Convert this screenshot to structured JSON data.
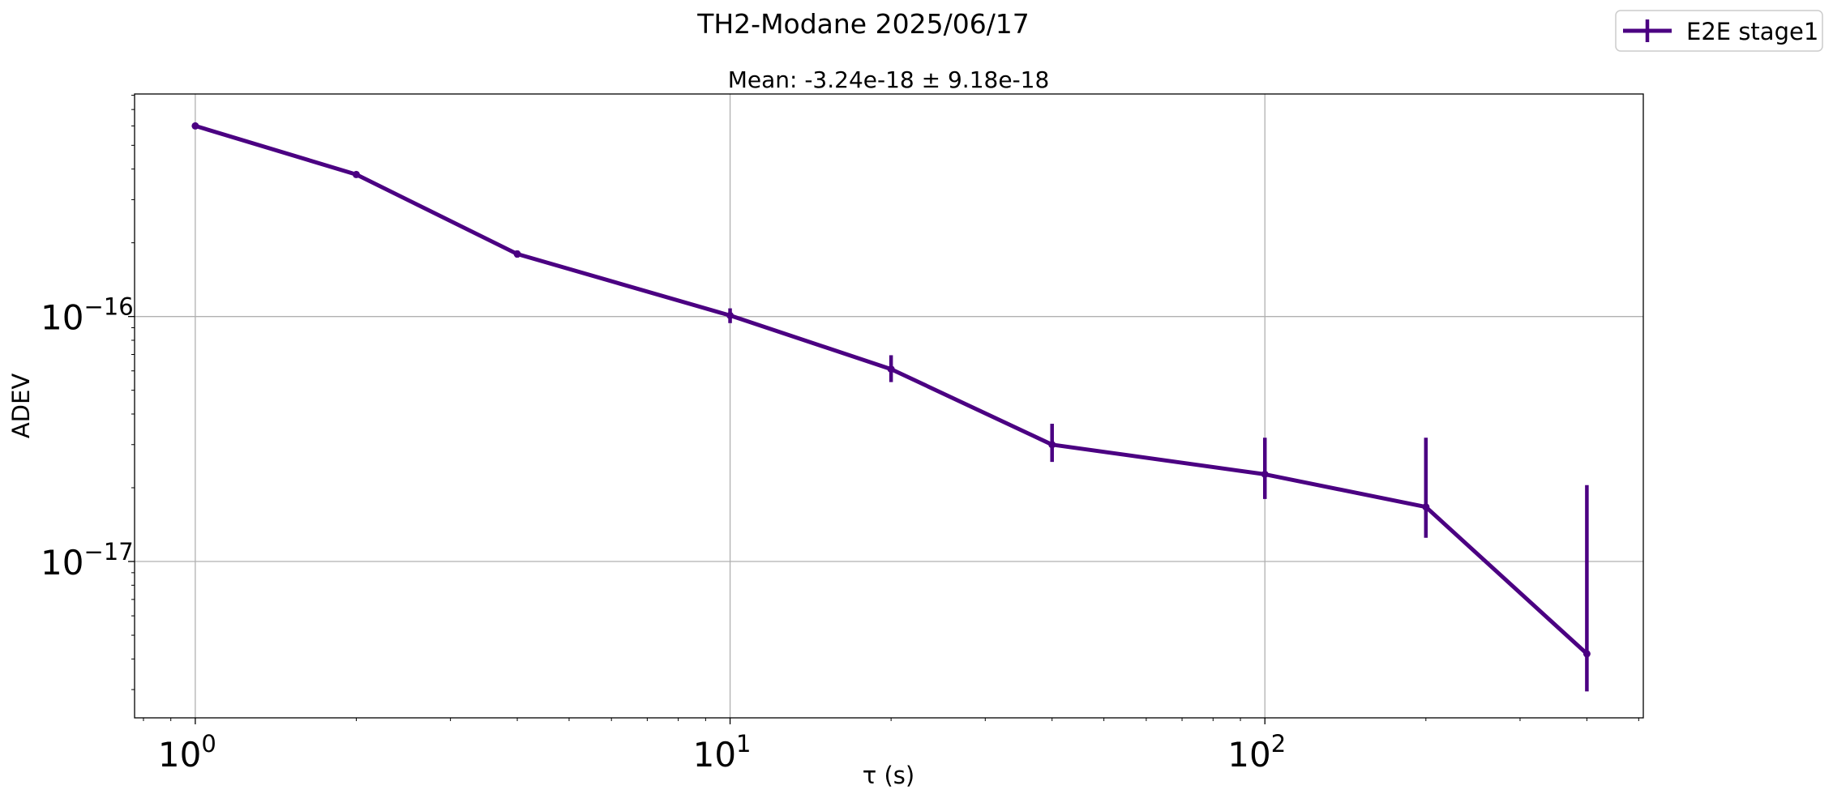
{
  "chart_data": {
    "type": "line",
    "title": "TH2-Modane 2025/06/17",
    "subtitle": "Mean: -3.24e-18 ± 9.18e-18",
    "xlabel": "τ (s)",
    "ylabel": "ADEV",
    "xscale": "log",
    "yscale": "log",
    "xlim": [
      0.77,
      510
    ],
    "ylim": [
      2.3e-18,
      8.1e-16
    ],
    "grid": true,
    "legend_position": "top-right",
    "x_ticks": [
      {
        "value": 1,
        "base": "10",
        "exp": "0"
      },
      {
        "value": 10,
        "base": "10",
        "exp": "1"
      },
      {
        "value": 100,
        "base": "10",
        "exp": "2"
      }
    ],
    "y_ticks": [
      {
        "value": 1e-16,
        "base": "10",
        "exp": "−16"
      },
      {
        "value": 1e-17,
        "base": "10",
        "exp": "−17"
      }
    ],
    "series": [
      {
        "name": "E2E stage1",
        "color": "#4b0082",
        "x": [
          1,
          2,
          4,
          10,
          20,
          40,
          100,
          200,
          400
        ],
        "y": [
          6e-16,
          3.8e-16,
          1.8e-16,
          1.01e-16,
          6.1e-17,
          3e-17,
          2.27e-17,
          1.67e-17,
          4.2e-18
        ],
        "yerr_low": [
          6e-16,
          3.74e-16,
          1.74e-16,
          9.4e-17,
          5.4e-17,
          2.55e-17,
          1.8e-17,
          1.25e-17,
          2.95e-18
        ],
        "yerr_high": [
          6e-16,
          3.86e-16,
          1.86e-16,
          1.08e-16,
          6.95e-17,
          3.65e-17,
          3.2e-17,
          3.2e-17,
          2.05e-17
        ]
      }
    ]
  }
}
